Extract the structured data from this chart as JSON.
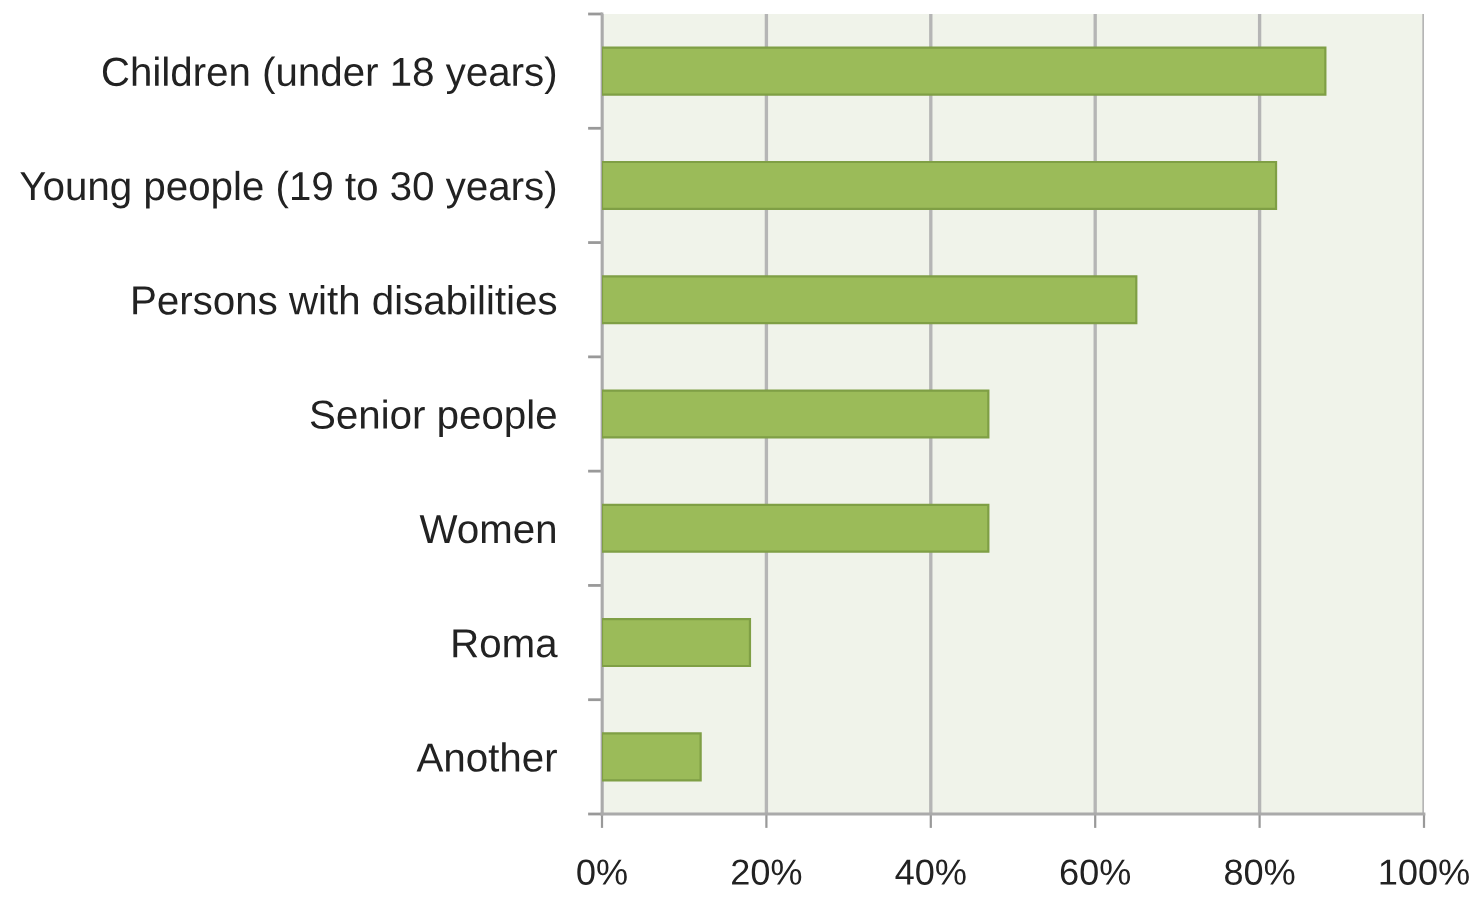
{
  "chart_data": {
    "type": "bar",
    "orientation": "horizontal",
    "categories": [
      "Children (under 18 years)",
      "Young people (19 to 30 years)",
      "Persons with disabilities",
      "Senior people",
      "Women",
      "Roma",
      "Another"
    ],
    "values": [
      88,
      82,
      65,
      47,
      47,
      18,
      12
    ],
    "color": "#9bbb59",
    "xlim": [
      0,
      100
    ],
    "xticks": [
      {
        "value": 0,
        "label": "0%"
      },
      {
        "value": 20,
        "label": "20%"
      },
      {
        "value": 40,
        "label": "40%"
      },
      {
        "value": 60,
        "label": "60%"
      },
      {
        "value": 80,
        "label": "80%"
      },
      {
        "value": 100,
        "label": "100%"
      }
    ],
    "grid": "x"
  }
}
